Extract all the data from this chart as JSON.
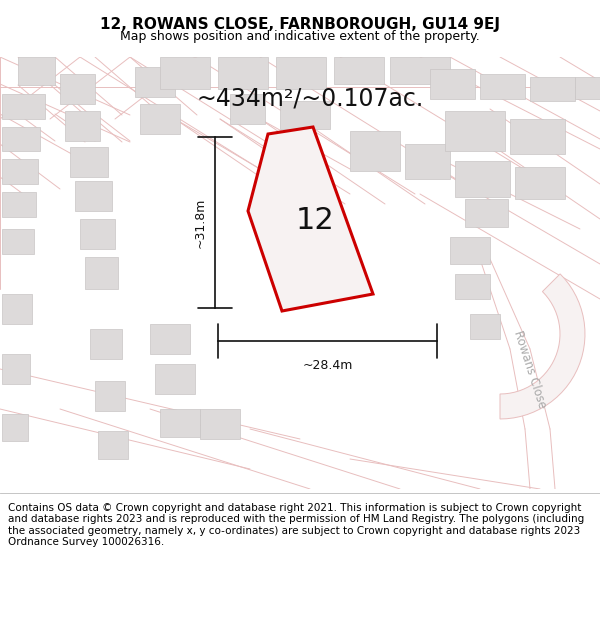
{
  "title_line1": "12, ROWANS CLOSE, FARNBOROUGH, GU14 9EJ",
  "title_line2": "Map shows position and indicative extent of the property.",
  "area_text": "~434m²/~0.107ac.",
  "label_number": "12",
  "dim_height": "~31.8m",
  "dim_width": "~28.4m",
  "road_label": "Rowans Close",
  "footer_text": "Contains OS data © Crown copyright and database right 2021. This information is subject to Crown copyright and database rights 2023 and is reproduced with the permission of HM Land Registry. The polygons (including the associated geometry, namely x, y co-ordinates) are subject to Crown copyright and database rights 2023 Ordnance Survey 100026316.",
  "map_bg": "#f7f2f2",
  "plot_fill": "#f7f2f2",
  "plot_edge": "#cc0000",
  "building_fill": "#dddada",
  "building_edge": "#c8c4c4",
  "road_outline_color": "#e8bebe",
  "road_fill_color": "#f7f2f2",
  "footer_bg": "#ffffff",
  "header_bg": "#ffffff",
  "text_color": "#111111",
  "dim_line_color": "#111111",
  "road_label_color": "#aaaaaa",
  "title_fontsize": 11,
  "subtitle_fontsize": 9,
  "area_fontsize": 17,
  "num_fontsize": 22,
  "dim_fontsize": 9,
  "footer_fontsize": 7.5
}
